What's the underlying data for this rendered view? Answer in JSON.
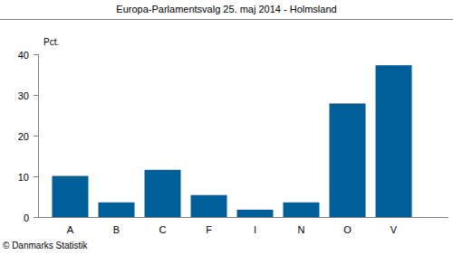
{
  "chart_data": {
    "type": "bar",
    "title": "Europa-Parlamentsvalg 25. maj 2014 - Holmsland",
    "y_label": "Pct.",
    "source": "© Danmarks Statistik",
    "categories": [
      "A",
      "B",
      "C",
      "F",
      "I",
      "N",
      "O",
      "V"
    ],
    "values": [
      10.1,
      3.6,
      11.6,
      5.4,
      1.8,
      3.6,
      27.9,
      37.3
    ],
    "color": "#005f99",
    "ylim": [
      0,
      40
    ],
    "yticks": [
      0,
      10,
      20,
      30,
      40
    ],
    "grid": false
  }
}
